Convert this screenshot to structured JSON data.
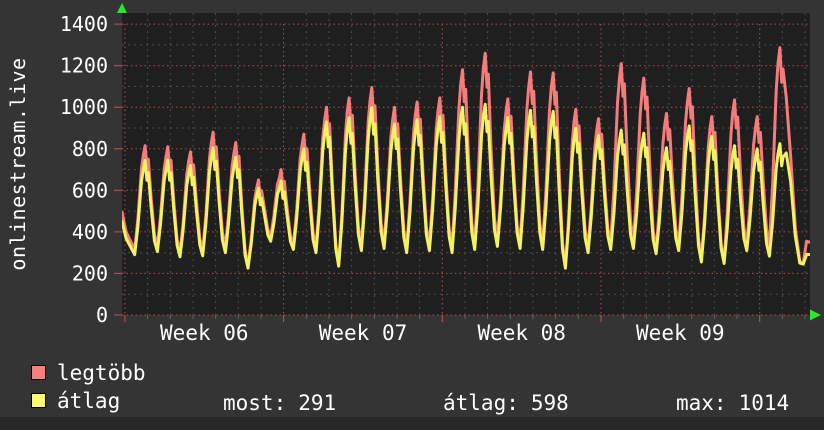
{
  "window": {
    "outer_bg": "#343434",
    "plot_bg": "#1f1f1f",
    "bottom_strip_color": "#282828"
  },
  "chart": {
    "vertical_title": "onlinestream.live",
    "colors": {
      "series_max": "#f57c7c",
      "series_avg": "#f2f262",
      "swatch_max": "#f58080",
      "swatch_avg": "#fbfb78",
      "grid_major": "#c05454",
      "grid_minor": "#787878",
      "axis_text": "#ffffff",
      "arrow_green": "#2ee52e"
    },
    "legend": [
      {
        "label": "legtöbb"
      },
      {
        "label": "átlag"
      }
    ],
    "stats_row": [
      {
        "label": "most:",
        "value": "291"
      },
      {
        "label": "átlag:",
        "value": "598"
      },
      {
        "label": "max:",
        "value": "1014"
      }
    ]
  },
  "chart_data": {
    "type": "line",
    "title": "onlinestream.live",
    "grid": true,
    "legend_position": "bottom-left",
    "y_axis": {
      "min": 0,
      "max": 1400,
      "major_step": 200,
      "minor_step": 100,
      "tick_labels": [
        "0",
        "200",
        "400",
        "600",
        "800",
        "1000",
        "1200",
        "1400"
      ]
    },
    "x_axis": {
      "labels": [
        "Week 06",
        "Week 07",
        "Week 08",
        "Week 09"
      ],
      "label_centers_day": [
        3.63,
        10.63,
        17.63,
        24.63
      ],
      "first_gridline_day": 0.13,
      "week_length_days": 7,
      "days_total": 30.35
    },
    "summary": {
      "most": 291,
      "atlag": 598,
      "max": 1014
    },
    "series": [
      {
        "name": "legtöbb",
        "role": "max",
        "color": "#f57c7c",
        "head": [
          [
            0,
            495
          ],
          [
            0.18,
            400
          ]
        ],
        "days": [
          {
            "t": 315,
            "p": 815
          },
          {
            "t": 330,
            "p": 810
          },
          {
            "t": 300,
            "p": 785
          },
          {
            "t": 310,
            "p": 880
          },
          {
            "t": 330,
            "p": 830
          },
          {
            "t": 240,
            "p": 650
          },
          {
            "t": 380,
            "p": 700
          },
          {
            "t": 340,
            "p": 870
          },
          {
            "t": 330,
            "p": 1000
          },
          {
            "t": 250,
            "p": 1045
          },
          {
            "t": 340,
            "p": 1095
          },
          {
            "t": 350,
            "p": 1000
          },
          {
            "t": 330,
            "p": 1025
          },
          {
            "t": 340,
            "p": 1045
          },
          {
            "t": 330,
            "p": 1180
          },
          {
            "t": 345,
            "p": 1260
          },
          {
            "t": 360,
            "p": 1040
          },
          {
            "t": 350,
            "p": 1170
          },
          {
            "t": 345,
            "p": 1165
          },
          {
            "t": 235,
            "p": 990
          },
          {
            "t": 330,
            "p": 945
          },
          {
            "t": 345,
            "p": 1210
          },
          {
            "t": 350,
            "p": 1140
          },
          {
            "t": 310,
            "p": 970
          },
          {
            "t": 340,
            "p": 1090
          },
          {
            "t": 270,
            "p": 955
          },
          {
            "t": 260,
            "p": 1035
          },
          {
            "t": 340,
            "p": 955
          },
          {
            "t": 340,
            "p": 1287
          }
        ],
        "tail": [
          [
            29.3,
            1050
          ],
          [
            29.5,
            760
          ],
          [
            29.7,
            420
          ],
          [
            29.9,
            258
          ],
          [
            30.05,
            250
          ],
          [
            30.2,
            355
          ],
          [
            30.35,
            350
          ]
        ]
      },
      {
        "name": "átlag",
        "role": "avg",
        "color": "#f2f262",
        "head": [
          [
            0,
            452
          ],
          [
            0.18,
            368
          ]
        ],
        "days": [
          {
            "t": 290,
            "p": 745
          },
          {
            "t": 305,
            "p": 745
          },
          {
            "t": 280,
            "p": 720
          },
          {
            "t": 285,
            "p": 805
          },
          {
            "t": 300,
            "p": 760
          },
          {
            "t": 225,
            "p": 610
          },
          {
            "t": 355,
            "p": 645
          },
          {
            "t": 315,
            "p": 800
          },
          {
            "t": 300,
            "p": 930
          },
          {
            "t": 235,
            "p": 950
          },
          {
            "t": 310,
            "p": 1000
          },
          {
            "t": 320,
            "p": 920
          },
          {
            "t": 300,
            "p": 940
          },
          {
            "t": 310,
            "p": 955
          },
          {
            "t": 300,
            "p": 1000
          },
          {
            "t": 315,
            "p": 1014
          },
          {
            "t": 330,
            "p": 950
          },
          {
            "t": 320,
            "p": 985
          },
          {
            "t": 315,
            "p": 980
          },
          {
            "t": 225,
            "p": 900
          },
          {
            "t": 300,
            "p": 865
          },
          {
            "t": 315,
            "p": 890
          },
          {
            "t": 320,
            "p": 875
          },
          {
            "t": 295,
            "p": 805
          },
          {
            "t": 310,
            "p": 910
          },
          {
            "t": 255,
            "p": 860
          },
          {
            "t": 248,
            "p": 815
          },
          {
            "t": 310,
            "p": 800
          },
          {
            "t": 283,
            "p": 825
          }
        ],
        "tail": [
          [
            29.3,
            780
          ],
          [
            29.5,
            640
          ],
          [
            29.7,
            380
          ],
          [
            29.9,
            250
          ],
          [
            30.05,
            245
          ],
          [
            30.2,
            291
          ],
          [
            30.35,
            291
          ]
        ]
      }
    ]
  }
}
